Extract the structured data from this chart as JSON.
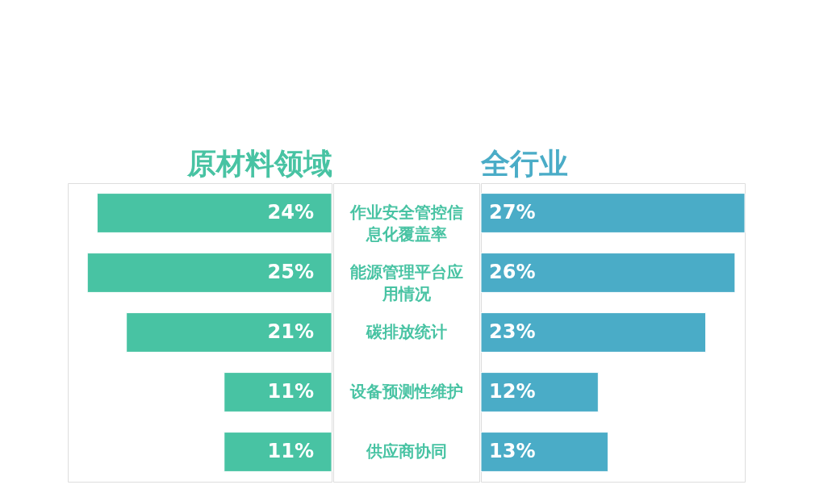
{
  "chart_data": [
    {
      "type": "bar",
      "orientation": "horizontal",
      "title": "原材料领域",
      "color": "#48c3a3",
      "tick_labels": false,
      "categories": [
        "作业安全管控信息化覆盖率",
        "能源管理平台应用情况",
        "碳排放统计",
        "设备预测性维护",
        "供应商协同"
      ],
      "values": [
        24,
        25,
        21,
        11,
        11
      ],
      "value_labels": [
        "24%",
        "25%",
        "21%",
        "11%",
        "11%"
      ]
    },
    {
      "type": "bar",
      "orientation": "horizontal",
      "title": "全行业",
      "color": "#4aacc7",
      "tick_labels": "y",
      "categories": [
        "作业安全管控信息化覆盖率",
        "能源管理平台应用情况",
        "碳排放统计",
        "设备预测性维护",
        "供应商协同"
      ],
      "values": [
        27,
        26,
        23,
        12,
        13
      ],
      "value_labels": [
        "27%",
        "26%",
        "23%",
        "12%",
        "13%"
      ]
    }
  ]
}
